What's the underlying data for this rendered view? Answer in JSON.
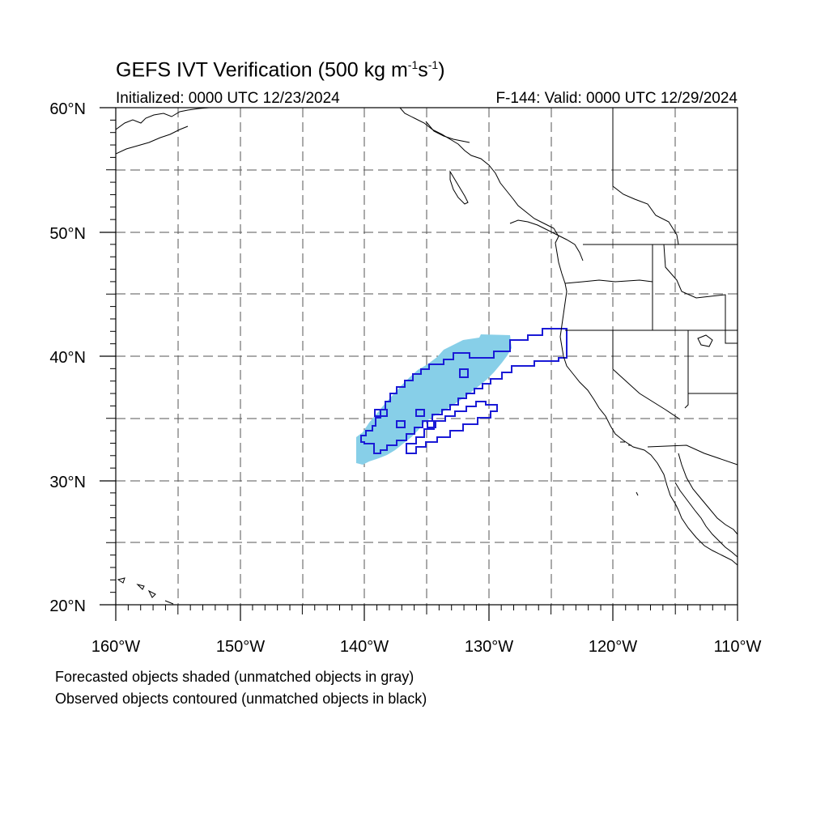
{
  "title": {
    "main": "GEFS IVT Verification (500 kg m",
    "sup1": "-1",
    "mid": "s",
    "sup2": "-1",
    "end": ")"
  },
  "initialized": "Initialized: 0000 UTC 12/23/2024",
  "valid": "F-144: Valid: 0000 UTC 12/29/2024",
  "axes": {
    "lon_labels": [
      "160°W",
      "150°W",
      "140°W",
      "130°W",
      "120°W",
      "110°W"
    ],
    "lat_labels": [
      "60°N",
      "50°N",
      "40°N",
      "30°N",
      "20°N"
    ],
    "lon_range": [
      -160,
      -110
    ],
    "lat_range": [
      20,
      60
    ],
    "gridlines": "dashed, every 5 degrees"
  },
  "legend": {
    "line1": "Forecasted objects shaded (unmatched objects in gray)",
    "line2": "Observed objects contoured (unmatched objects in black)"
  },
  "colors": {
    "forecast_fill": "#87cfe8",
    "observed_contour": "#1a1ad6",
    "coastline": "#000000",
    "grid": "#555555"
  }
}
